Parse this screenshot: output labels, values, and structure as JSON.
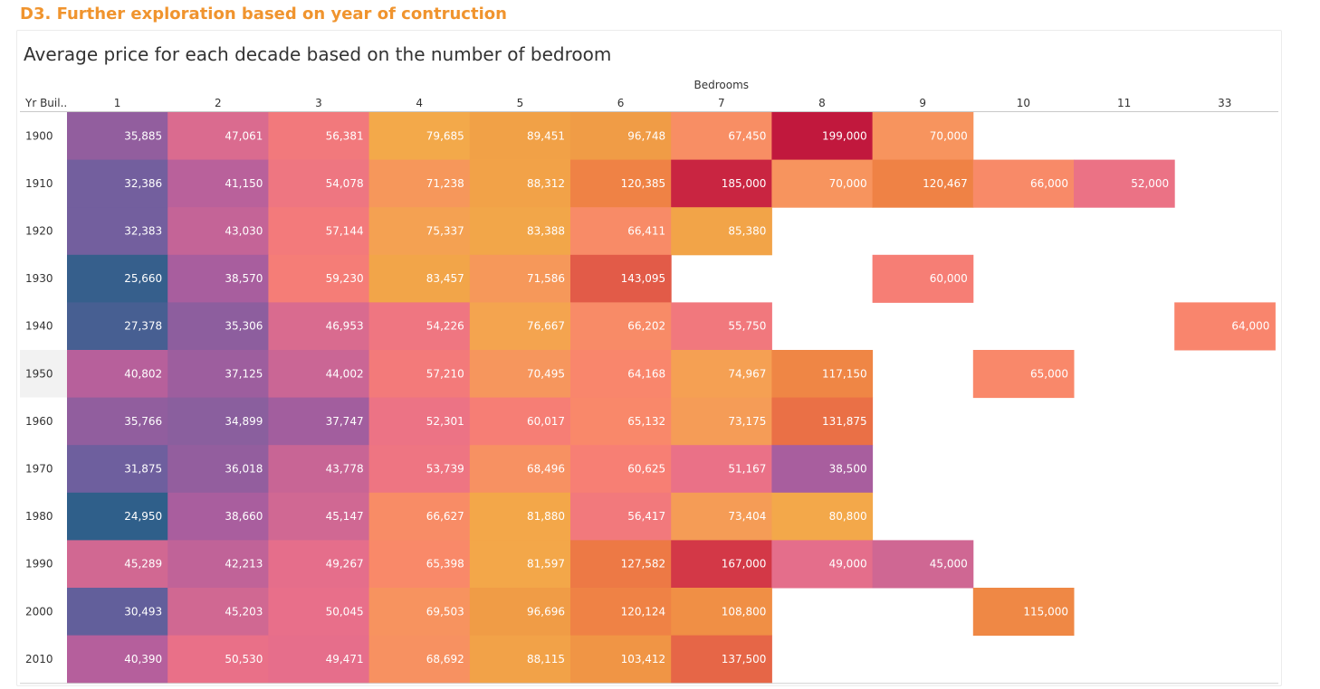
{
  "section_title": "D3. Further exploration based on year of contruction",
  "chart_title": "Average price for each decade based on the number of bedroom",
  "chart_data": {
    "type": "heatmap",
    "title": "Average price for each decade based on the number of bedroom",
    "column_header": "Bedrooms",
    "row_header": "Yr Buil..",
    "columns": [
      "1",
      "2",
      "3",
      "4",
      "5",
      "6",
      "7",
      "8",
      "9",
      "10",
      "11",
      "33"
    ],
    "rows": [
      "1900",
      "1910",
      "1920",
      "1930",
      "1940",
      "1950",
      "1960",
      "1970",
      "1980",
      "1990",
      "2000",
      "2010"
    ],
    "values": [
      [
        35885,
        47061,
        56381,
        79685,
        89451,
        96748,
        67450,
        199000,
        70000,
        null,
        null,
        null
      ],
      [
        32386,
        41150,
        54078,
        71238,
        88312,
        120385,
        185000,
        70000,
        120467,
        66000,
        52000,
        null
      ],
      [
        32383,
        43030,
        57144,
        75337,
        83388,
        66411,
        85380,
        null,
        null,
        null,
        null,
        null
      ],
      [
        25660,
        38570,
        59230,
        83457,
        71586,
        143095,
        null,
        null,
        60000,
        null,
        null,
        null
      ],
      [
        27378,
        35306,
        46953,
        54226,
        76667,
        66202,
        55750,
        null,
        null,
        null,
        null,
        64000
      ],
      [
        40802,
        37125,
        44002,
        57210,
        70495,
        64168,
        74967,
        117150,
        null,
        65000,
        null,
        null
      ],
      [
        35766,
        34899,
        37747,
        52301,
        60017,
        65132,
        73175,
        131875,
        null,
        null,
        null,
        null
      ],
      [
        31875,
        36018,
        43778,
        53739,
        68496,
        60625,
        51167,
        38500,
        null,
        null,
        null,
        null
      ],
      [
        24950,
        38660,
        45147,
        66627,
        81880,
        56417,
        73404,
        80800,
        null,
        null,
        null,
        null
      ],
      [
        45289,
        42213,
        49267,
        65398,
        81597,
        127582,
        167000,
        49000,
        45000,
        null,
        null,
        null
      ],
      [
        30493,
        45203,
        50045,
        69503,
        96696,
        120124,
        108800,
        null,
        null,
        115000,
        null,
        null
      ],
      [
        40390,
        50530,
        49471,
        68692,
        88115,
        103412,
        137500,
        null,
        null,
        null,
        null,
        null
      ]
    ],
    "legend": "none",
    "color_scale": "sunset",
    "color_stops": [
      "#2f5f8a",
      "#6a5f9e",
      "#b05e9e",
      "#e86f8a",
      "#fa8270",
      "#f3a94a",
      "#f09a45",
      "#ef7d45",
      "#d9424a",
      "#c1183d"
    ]
  }
}
